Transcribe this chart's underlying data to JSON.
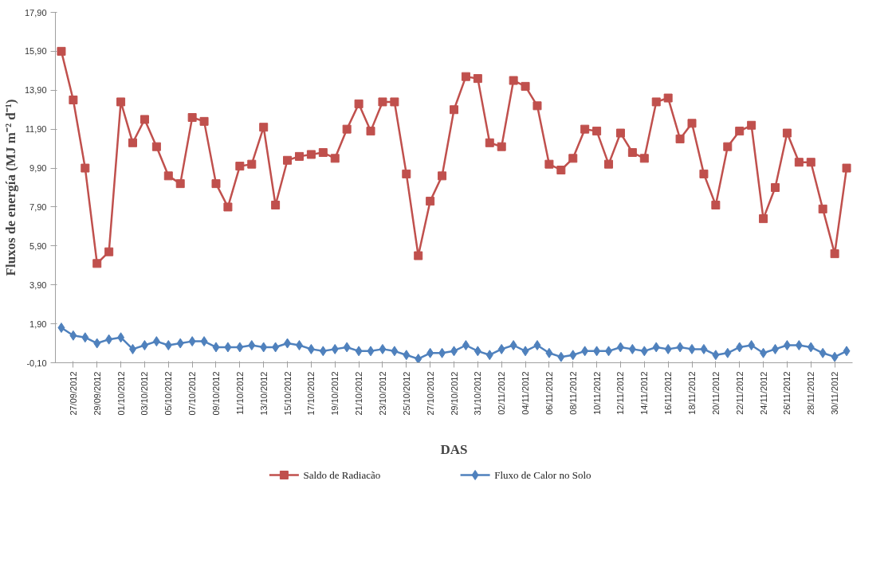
{
  "chart_data": {
    "type": "line",
    "xlabel": "DAS",
    "ylabel": "Fluxos de energía (MJ m⁻² d⁻¹)",
    "categories": [
      null,
      "27/09/2012",
      null,
      "29/09/2012",
      null,
      "01/10/2012",
      null,
      "03/10/2012",
      null,
      "05/10/2012",
      null,
      "07/10/2012",
      null,
      "09/10/2012",
      null,
      "11/10/2012",
      null,
      "13/10/2012",
      null,
      "15/10/2012",
      null,
      "17/10/2012",
      null,
      "19/10/2012",
      null,
      "21/10/2012",
      null,
      "23/10/2012",
      null,
      "25/10/2012",
      null,
      "27/10/2012",
      null,
      "29/10/2012",
      null,
      "31/10/2012",
      null,
      "02/11/2012",
      null,
      "04/11/2012",
      null,
      "06/11/2012",
      null,
      "08/11/2012",
      null,
      "10/11/2012",
      null,
      "12/11/2012",
      null,
      "14/11/2012",
      null,
      "16/11/2012",
      null,
      "18/11/2012",
      null,
      "20/11/2012",
      null,
      "22/11/2012",
      null,
      "24/11/2012",
      null,
      "26/11/2012",
      null,
      "28/11/2012",
      null,
      "30/11/2012",
      null
    ],
    "series": [
      {
        "name": "Saldo de Radiacão",
        "color": "#c0504d",
        "marker": "square",
        "values": [
          15.9,
          13.4,
          9.9,
          5.0,
          5.6,
          13.3,
          11.2,
          12.4,
          11.0,
          9.5,
          9.1,
          12.5,
          12.3,
          9.1,
          7.9,
          10.0,
          10.1,
          12.0,
          8.0,
          10.3,
          10.5,
          10.6,
          10.7,
          10.4,
          11.9,
          13.2,
          11.8,
          13.3,
          13.3,
          9.6,
          5.4,
          8.2,
          9.5,
          12.9,
          14.6,
          14.5,
          11.2,
          11.0,
          14.4,
          14.1,
          13.1,
          10.1,
          9.8,
          10.4,
          11.9,
          11.8,
          10.1,
          11.7,
          10.7,
          10.4,
          13.3,
          13.5,
          11.4,
          12.2,
          9.6,
          8.0,
          11.0,
          11.8,
          12.1,
          7.3,
          8.9,
          11.7,
          10.2,
          10.2,
          7.8,
          5.5,
          9.9
        ]
      },
      {
        "name": "Fluxo de Calor no Solo",
        "color": "#4f81bd",
        "marker": "diamond",
        "values": [
          1.7,
          1.3,
          1.2,
          0.9,
          1.1,
          1.2,
          0.6,
          0.8,
          1.0,
          0.8,
          0.9,
          1.0,
          1.0,
          0.7,
          0.7,
          0.7,
          0.8,
          0.7,
          0.7,
          0.9,
          0.8,
          0.6,
          0.5,
          0.6,
          0.7,
          0.5,
          0.5,
          0.6,
          0.5,
          0.3,
          0.1,
          0.4,
          0.4,
          0.5,
          0.8,
          0.5,
          0.3,
          0.6,
          0.8,
          0.5,
          0.8,
          0.4,
          0.2,
          0.3,
          0.5,
          0.5,
          0.5,
          0.7,
          0.6,
          0.5,
          0.7,
          0.6,
          0.7,
          0.6,
          0.6,
          0.3,
          0.4,
          0.7,
          0.8,
          0.4,
          0.6,
          0.8,
          0.8,
          0.7,
          0.4,
          0.2,
          0.5
        ]
      }
    ],
    "ylim": [
      -0.1,
      17.9
    ],
    "yticks": [
      {
        "value": -0.1,
        "label": "-0,10"
      },
      {
        "value": 1.9,
        "label": "1,90"
      },
      {
        "value": 3.9,
        "label": "3,90"
      },
      {
        "value": 5.9,
        "label": "5,90"
      },
      {
        "value": 7.9,
        "label": "7,90"
      },
      {
        "value": 9.9,
        "label": "9,90"
      },
      {
        "value": 11.9,
        "label": "11,90"
      },
      {
        "value": 13.9,
        "label": "13,90"
      },
      {
        "value": 15.9,
        "label": "15,90"
      },
      {
        "value": 17.9,
        "label": "17,90"
      }
    ],
    "legend": "bottom"
  }
}
